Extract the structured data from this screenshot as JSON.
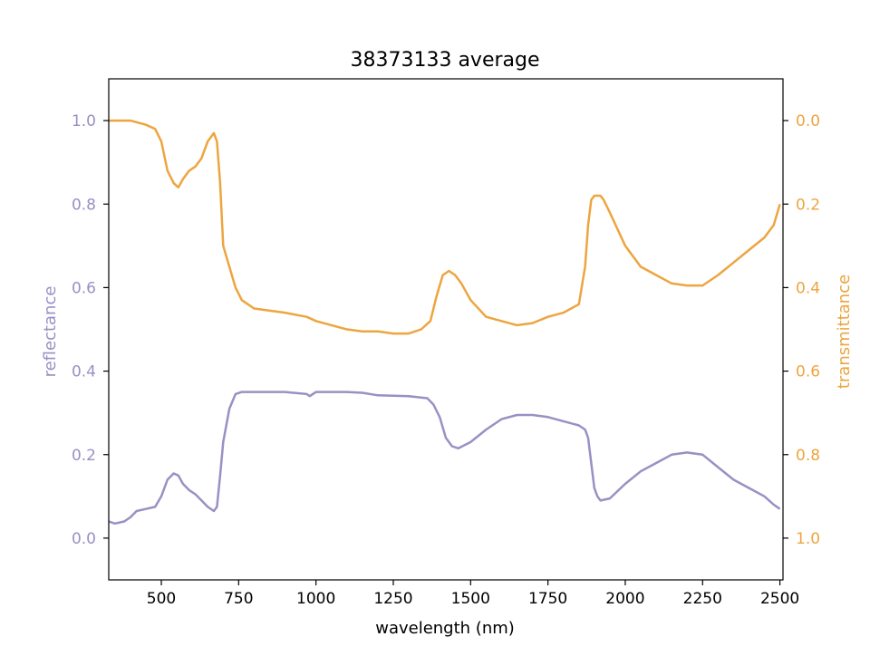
{
  "chart_data": {
    "type": "line",
    "title": "38373133 average",
    "xlabel": "wavelength (nm)",
    "ylabel_left": "reflectance",
    "ylabel_right": "transmittance",
    "xlim": [
      330,
      2510
    ],
    "ylim_left": [
      -0.1,
      1.1
    ],
    "ylim_right_inverted": [
      1.1,
      -0.1
    ],
    "x_ticks": [
      500,
      750,
      1000,
      1250,
      1500,
      1750,
      2000,
      2250,
      2500
    ],
    "y_ticks_left": [
      0.0,
      0.2,
      0.4,
      0.6,
      0.8,
      1.0
    ],
    "y_ticks_right": [
      0.0,
      0.2,
      0.4,
      0.6,
      0.8,
      1.0
    ],
    "grid": false,
    "colors": {
      "reflectance": "#9990c4",
      "transmittance": "#eda53f",
      "axis": "#000000"
    },
    "series": [
      {
        "key": "reflectance",
        "axis": "left",
        "x": [
          330,
          350,
          380,
          400,
          420,
          450,
          480,
          500,
          520,
          540,
          555,
          570,
          590,
          610,
          630,
          650,
          670,
          680,
          690,
          700,
          720,
          740,
          760,
          800,
          900,
          970,
          980,
          1000,
          1100,
          1150,
          1200,
          1300,
          1360,
          1380,
          1400,
          1420,
          1440,
          1460,
          1500,
          1550,
          1600,
          1650,
          1700,
          1750,
          1800,
          1850,
          1870,
          1880,
          1890,
          1900,
          1910,
          1920,
          1950,
          2000,
          2050,
          2100,
          2150,
          2200,
          2250,
          2300,
          2350,
          2400,
          2450,
          2480,
          2500
        ],
        "y": [
          0.04,
          0.035,
          0.04,
          0.05,
          0.065,
          0.07,
          0.075,
          0.1,
          0.14,
          0.155,
          0.15,
          0.13,
          0.115,
          0.105,
          0.09,
          0.075,
          0.065,
          0.075,
          0.15,
          0.23,
          0.31,
          0.345,
          0.35,
          0.35,
          0.35,
          0.345,
          0.34,
          0.35,
          0.35,
          0.348,
          0.342,
          0.34,
          0.335,
          0.32,
          0.29,
          0.24,
          0.22,
          0.215,
          0.23,
          0.26,
          0.285,
          0.295,
          0.295,
          0.29,
          0.28,
          0.27,
          0.26,
          0.24,
          0.18,
          0.12,
          0.1,
          0.09,
          0.095,
          0.13,
          0.16,
          0.18,
          0.2,
          0.205,
          0.2,
          0.17,
          0.14,
          0.12,
          0.1,
          0.08,
          0.07
        ]
      },
      {
        "key": "transmittance",
        "axis": "right",
        "x": [
          330,
          350,
          400,
          450,
          480,
          500,
          520,
          540,
          555,
          570,
          590,
          610,
          630,
          650,
          670,
          680,
          690,
          700,
          720,
          740,
          760,
          800,
          900,
          970,
          1000,
          1050,
          1100,
          1150,
          1200,
          1250,
          1300,
          1340,
          1370,
          1390,
          1410,
          1430,
          1450,
          1470,
          1500,
          1550,
          1600,
          1650,
          1700,
          1750,
          1800,
          1850,
          1870,
          1880,
          1890,
          1900,
          1910,
          1920,
          1930,
          1950,
          2000,
          2050,
          2100,
          2150,
          2200,
          2250,
          2300,
          2350,
          2400,
          2450,
          2480,
          2500
        ],
        "y": [
          0.0,
          0.0,
          0.0,
          0.01,
          0.02,
          0.05,
          0.12,
          0.15,
          0.16,
          0.14,
          0.12,
          0.11,
          0.09,
          0.05,
          0.03,
          0.05,
          0.15,
          0.3,
          0.35,
          0.4,
          0.43,
          0.45,
          0.46,
          0.47,
          0.48,
          0.49,
          0.5,
          0.505,
          0.505,
          0.51,
          0.51,
          0.5,
          0.48,
          0.42,
          0.37,
          0.36,
          0.37,
          0.39,
          0.43,
          0.47,
          0.48,
          0.49,
          0.485,
          0.47,
          0.46,
          0.44,
          0.35,
          0.25,
          0.19,
          0.18,
          0.18,
          0.18,
          0.19,
          0.22,
          0.3,
          0.35,
          0.37,
          0.39,
          0.395,
          0.395,
          0.37,
          0.34,
          0.31,
          0.28,
          0.25,
          0.2
        ]
      }
    ]
  }
}
